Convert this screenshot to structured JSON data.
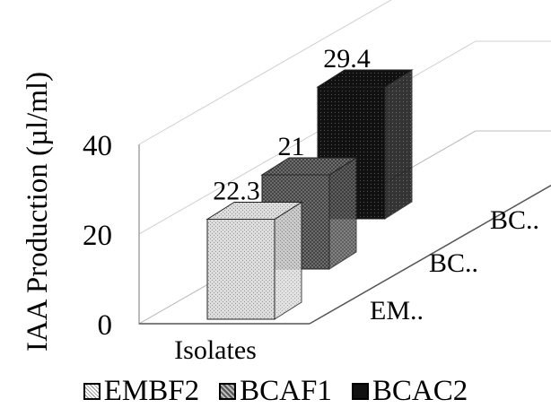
{
  "chart_data": {
    "type": "bar",
    "style": "3d-clustered-depth",
    "categories": [
      "Isolates"
    ],
    "series": [
      {
        "name": "EMBF2",
        "depth_label": "EM..",
        "values": [
          22.3
        ],
        "color": "#d8d8d8",
        "pattern": "light-stipple"
      },
      {
        "name": "BCAF1",
        "depth_label": "BC..",
        "values": [
          21
        ],
        "color": "#6e6e6e",
        "pattern": "dark-crosshatch"
      },
      {
        "name": "BCAC2",
        "depth_label": "BC..",
        "values": [
          29.4
        ],
        "color": "#101010",
        "pattern": "black-dotted"
      }
    ],
    "data_labels": [
      "22.3",
      "21",
      "29.4"
    ],
    "title": "",
    "xlabel": "",
    "ylabel": "IAA Production (µl/ml)",
    "ylim": [
      0,
      40
    ],
    "yticks": [
      "0",
      "20",
      "40"
    ],
    "grid": true,
    "legend": "bottom"
  }
}
